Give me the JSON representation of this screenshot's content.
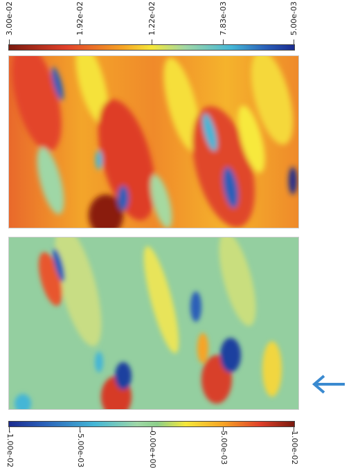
{
  "top_colorbar": {
    "labels": [
      "3.00e-02",
      "1.92e-02",
      "1.22e-02",
      "7.83e-03",
      "5.00e-03"
    ],
    "colors": [
      "#7a1a0e",
      "#e0402a",
      "#f6a425",
      "#f5e73a",
      "#9fd7a6",
      "#44b6d6",
      "#2a5fb8",
      "#1b2b8f"
    ]
  },
  "bottom_colorbar": {
    "labels": [
      "-1.00e-02",
      "-5.00e-03",
      "0.00e+00",
      "5.00e-03",
      "1.00e-02"
    ],
    "colors": [
      "#1b2b8f",
      "#2a5fb8",
      "#44b6d6",
      "#9fd7a6",
      "#8ccf8a",
      "#f5e73a",
      "#f6a425",
      "#e0402a",
      "#7a1a0e"
    ]
  },
  "panels": {
    "top": {
      "base_color": "#f0a02a"
    },
    "bottom": {
      "base_color": "#94cfa0"
    }
  },
  "arrow": {
    "icon": "arrow-left-icon",
    "color": "#3a8ad0"
  }
}
